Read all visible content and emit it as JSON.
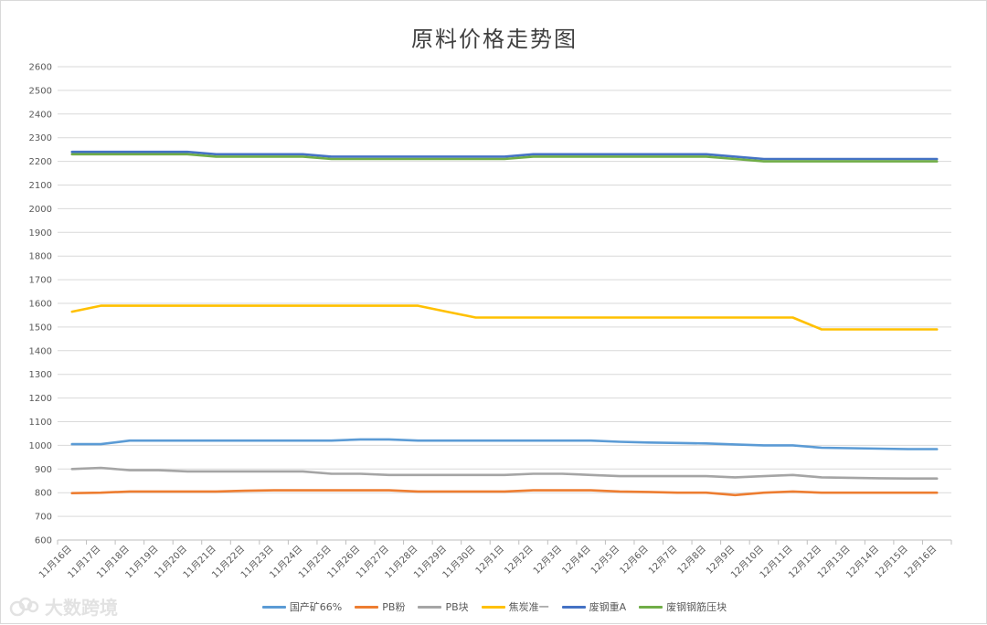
{
  "chart_data": {
    "type": "line",
    "title": "原料价格走势图",
    "xlabel": "",
    "ylabel": "",
    "ylim": [
      600,
      2600
    ],
    "ystep": 100,
    "grid": true,
    "legend_position": "bottom",
    "categories": [
      "11月16日",
      "11月17日",
      "11月18日",
      "11月19日",
      "11月20日",
      "11月21日",
      "11月22日",
      "11月23日",
      "11月24日",
      "11月25日",
      "11月26日",
      "11月27日",
      "11月28日",
      "11月29日",
      "11月30日",
      "12月1日",
      "12月2日",
      "12月3日",
      "12月4日",
      "12月5日",
      "12月6日",
      "12月7日",
      "12月8日",
      "12月9日",
      "12月10日",
      "12月11日",
      "12月12日",
      "12月13日",
      "12月14日",
      "12月15日",
      "12月16日"
    ],
    "series": [
      {
        "name": "国产矿66%",
        "color": "#5b9bd5",
        "values": [
          1005,
          1005,
          1020,
          1020,
          1020,
          1020,
          1020,
          1020,
          1020,
          1020,
          1025,
          1025,
          1020,
          1020,
          1020,
          1020,
          1020,
          1020,
          1020,
          1015,
          1012,
          1010,
          1008,
          1004,
          1000,
          1000,
          990,
          988,
          986,
          984,
          984
        ]
      },
      {
        "name": "PB粉",
        "color": "#ed7d31",
        "values": [
          798,
          800,
          805,
          805,
          805,
          805,
          808,
          810,
          810,
          810,
          810,
          810,
          805,
          805,
          805,
          805,
          810,
          810,
          810,
          805,
          803,
          800,
          800,
          790,
          800,
          805,
          800,
          800,
          800,
          800,
          800
        ]
      },
      {
        "name": "PB块",
        "color": "#a5a5a5",
        "values": [
          900,
          905,
          895,
          895,
          890,
          890,
          890,
          890,
          890,
          880,
          880,
          875,
          875,
          875,
          875,
          875,
          880,
          880,
          875,
          870,
          870,
          870,
          870,
          865,
          870,
          875,
          865,
          863,
          861,
          860,
          860
        ]
      },
      {
        "name": "焦炭准一",
        "color": "#ffc000",
        "values": [
          1565,
          1590,
          1590,
          1590,
          1590,
          1590,
          1590,
          1590,
          1590,
          1590,
          1590,
          1590,
          1590,
          1565,
          1540,
          1540,
          1540,
          1540,
          1540,
          1540,
          1540,
          1540,
          1540,
          1540,
          1540,
          1540,
          1490,
          1490,
          1490,
          1490,
          1490
        ]
      },
      {
        "name": "废钢重A",
        "color": "#4472c4",
        "values": [
          2240,
          2240,
          2240,
          2240,
          2240,
          2230,
          2230,
          2230,
          2230,
          2220,
          2220,
          2220,
          2220,
          2220,
          2220,
          2220,
          2230,
          2230,
          2230,
          2230,
          2230,
          2230,
          2230,
          2220,
          2210,
          2210,
          2210,
          2210,
          2210,
          2210,
          2210
        ]
      },
      {
        "name": "废钢钢筋压块",
        "color": "#70ad47",
        "values": [
          2230,
          2230,
          2230,
          2230,
          2230,
          2220,
          2220,
          2220,
          2220,
          2210,
          2210,
          2210,
          2210,
          2210,
          2210,
          2210,
          2220,
          2220,
          2220,
          2220,
          2220,
          2220,
          2220,
          2210,
          2200,
          2200,
          2200,
          2200,
          2200,
          2200,
          2200
        ]
      }
    ]
  },
  "watermark": {
    "text": "大数跨境",
    "icon": "cloud-logo-icon"
  }
}
